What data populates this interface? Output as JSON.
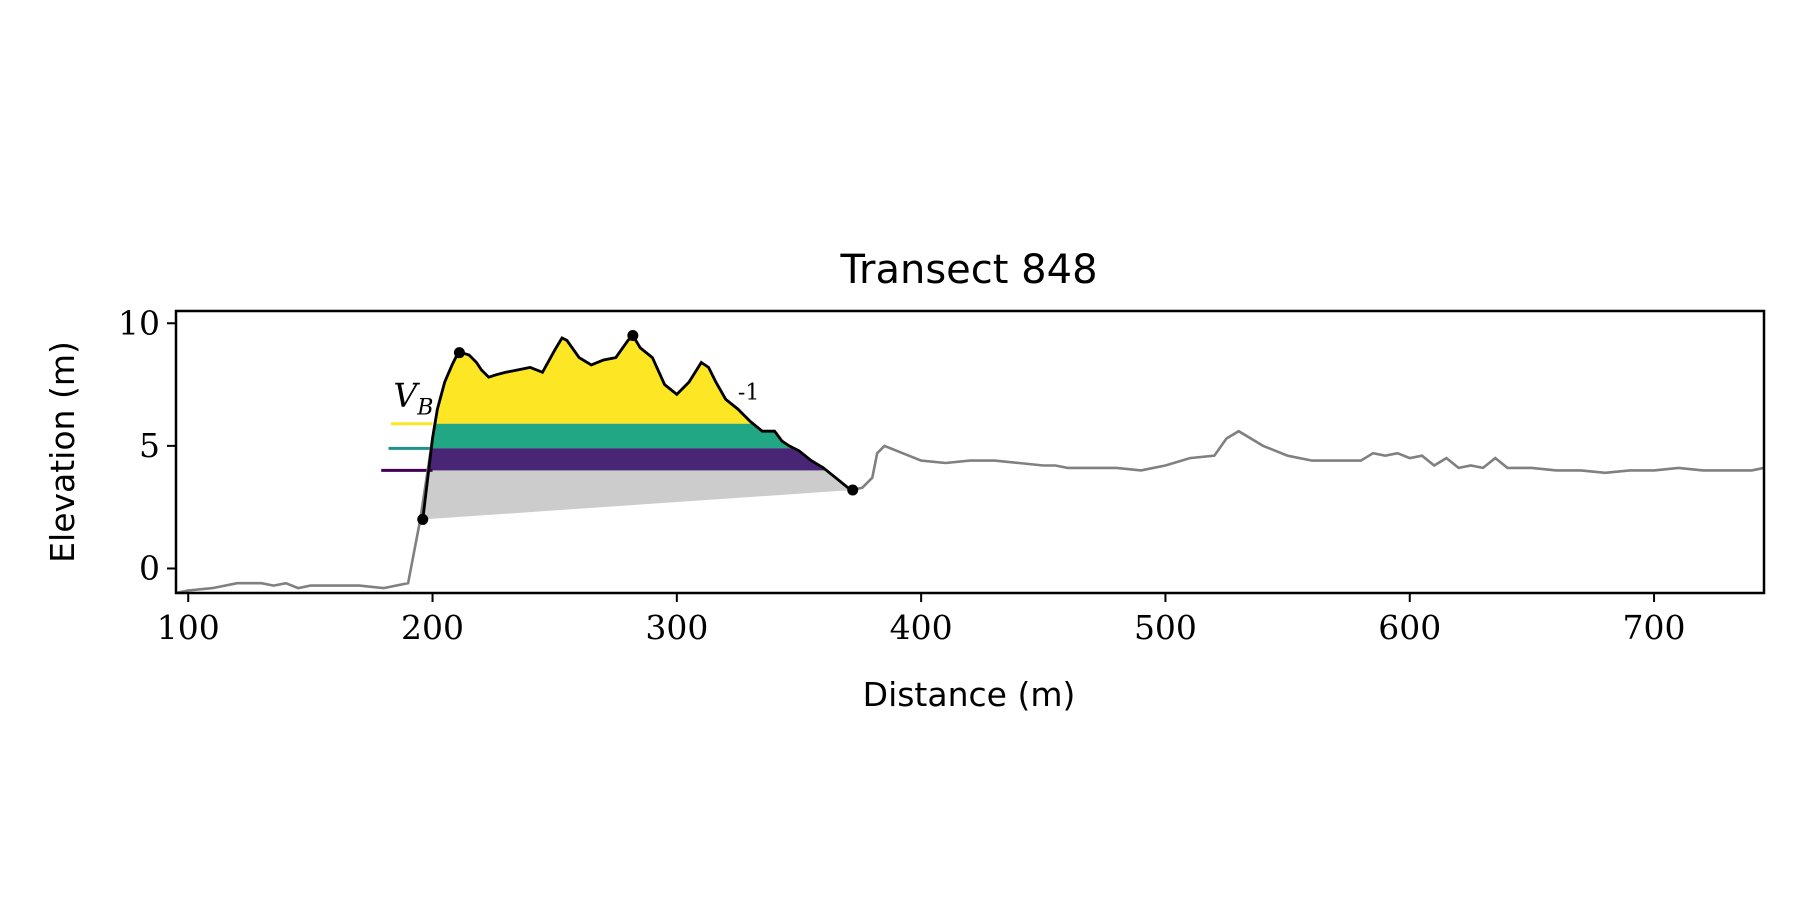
{
  "chart_data": {
    "type": "line",
    "title": "Transect 848",
    "xlabel": "Distance (m)",
    "ylabel": "Elevation (m)",
    "xlim": [
      95,
      745
    ],
    "ylim": [
      -1.0,
      10.5
    ],
    "xticks": [
      100,
      200,
      300,
      400,
      500,
      600,
      700
    ],
    "yticks": [
      0,
      5,
      10
    ],
    "grid": false,
    "series": [
      {
        "role": "full-profile",
        "color": "#808080",
        "x": [
          95,
          100,
          110,
          120,
          130,
          135,
          140,
          145,
          150,
          160,
          170,
          180,
          185,
          190,
          195,
          200,
          202,
          205,
          208,
          210,
          212,
          215,
          218,
          220,
          223,
          226,
          230,
          235,
          240,
          245,
          250,
          253,
          255,
          260,
          265,
          270,
          275,
          280,
          282,
          285,
          290,
          295,
          300,
          305,
          310,
          313,
          316,
          320,
          325,
          330,
          335,
          340,
          343,
          346,
          350,
          355,
          360,
          365,
          370,
          372,
          376,
          380,
          382,
          385,
          390,
          400,
          410,
          420,
          430,
          440,
          450,
          455,
          460,
          470,
          480,
          490,
          500,
          510,
          520,
          525,
          530,
          540,
          550,
          560,
          570,
          580,
          585,
          590,
          595,
          600,
          605,
          610,
          615,
          620,
          625,
          630,
          635,
          640,
          650,
          660,
          670,
          680,
          690,
          700,
          710,
          720,
          730,
          740,
          745
        ],
        "y": [
          -1.0,
          -0.9,
          -0.8,
          -0.6,
          -0.6,
          -0.7,
          -0.6,
          -0.8,
          -0.7,
          -0.7,
          -0.7,
          -0.8,
          -0.7,
          -0.6,
          2.0,
          5.3,
          6.5,
          7.6,
          8.3,
          8.7,
          8.8,
          8.7,
          8.4,
          8.1,
          7.8,
          7.9,
          8.0,
          8.1,
          8.2,
          8.0,
          8.9,
          9.4,
          9.3,
          8.6,
          8.3,
          8.5,
          8.6,
          9.3,
          9.5,
          9.0,
          8.6,
          7.5,
          7.1,
          7.6,
          8.4,
          8.2,
          7.6,
          6.9,
          6.5,
          6.0,
          5.6,
          5.6,
          5.2,
          5.0,
          4.8,
          4.4,
          4.1,
          3.7,
          3.3,
          3.2,
          3.3,
          3.7,
          4.7,
          5.0,
          4.8,
          4.4,
          4.3,
          4.4,
          4.4,
          4.3,
          4.2,
          4.2,
          4.1,
          4.1,
          4.1,
          4.0,
          4.2,
          4.5,
          4.6,
          5.3,
          5.6,
          5.0,
          4.6,
          4.4,
          4.4,
          4.4,
          4.7,
          4.6,
          4.7,
          4.5,
          4.6,
          4.2,
          4.5,
          4.1,
          4.2,
          4.1,
          4.5,
          4.1,
          4.1,
          4.0,
          4.0,
          3.9,
          4.0,
          4.0,
          4.1,
          4.0,
          4.0,
          4.0,
          4.1
        ]
      },
      {
        "role": "dune-profile",
        "color": "#000000",
        "x": [
          196,
          200,
          202,
          205,
          208,
          210,
          212,
          215,
          218,
          220,
          223,
          226,
          230,
          235,
          240,
          245,
          250,
          253,
          255,
          260,
          265,
          270,
          275,
          280,
          282,
          285,
          290,
          295,
          300,
          305,
          310,
          313,
          316,
          320,
          325,
          330,
          335,
          340,
          343,
          346,
          350,
          355,
          360,
          365,
          370,
          372
        ],
        "y": [
          2.0,
          5.3,
          6.5,
          7.6,
          8.3,
          8.7,
          8.8,
          8.7,
          8.4,
          8.1,
          7.8,
          7.9,
          8.0,
          8.1,
          8.2,
          8.0,
          8.9,
          9.4,
          9.3,
          8.6,
          8.3,
          8.5,
          8.6,
          9.3,
          9.5,
          9.0,
          8.6,
          7.5,
          7.1,
          7.6,
          8.4,
          8.2,
          7.6,
          6.9,
          6.5,
          6.0,
          5.6,
          5.6,
          5.2,
          5.0,
          4.8,
          4.4,
          4.1,
          3.7,
          3.3,
          3.2
        ]
      }
    ],
    "baseline": {
      "x": [
        196,
        372
      ],
      "y": [
        2.0,
        3.2
      ],
      "color": "#cccccc"
    },
    "markers": [
      {
        "x": 196,
        "y": 2.0
      },
      {
        "x": 211,
        "y": 8.8
      },
      {
        "x": 282,
        "y": 9.5
      },
      {
        "x": 372,
        "y": 3.2
      }
    ],
    "bands": [
      {
        "upper": 10.5,
        "lower": 5.9,
        "fill": "#fde725",
        "line_color": "#fde725",
        "line_x_start": 183
      },
      {
        "upper": 5.9,
        "lower": 4.9,
        "fill": "#21a784",
        "line_color": "#21918c",
        "line_x_start": 182
      },
      {
        "upper": 4.9,
        "lower": 4.0,
        "fill": "#482575",
        "line_color": "#440154",
        "line_x_start": 179
      }
    ],
    "annotations": {
      "volume_label": {
        "base": "V",
        "subscript": "B",
        "x": 184,
        "y": 6.6
      },
      "superscript_fragment": {
        "text": "-1",
        "x": 325,
        "y": 6.9
      }
    }
  }
}
